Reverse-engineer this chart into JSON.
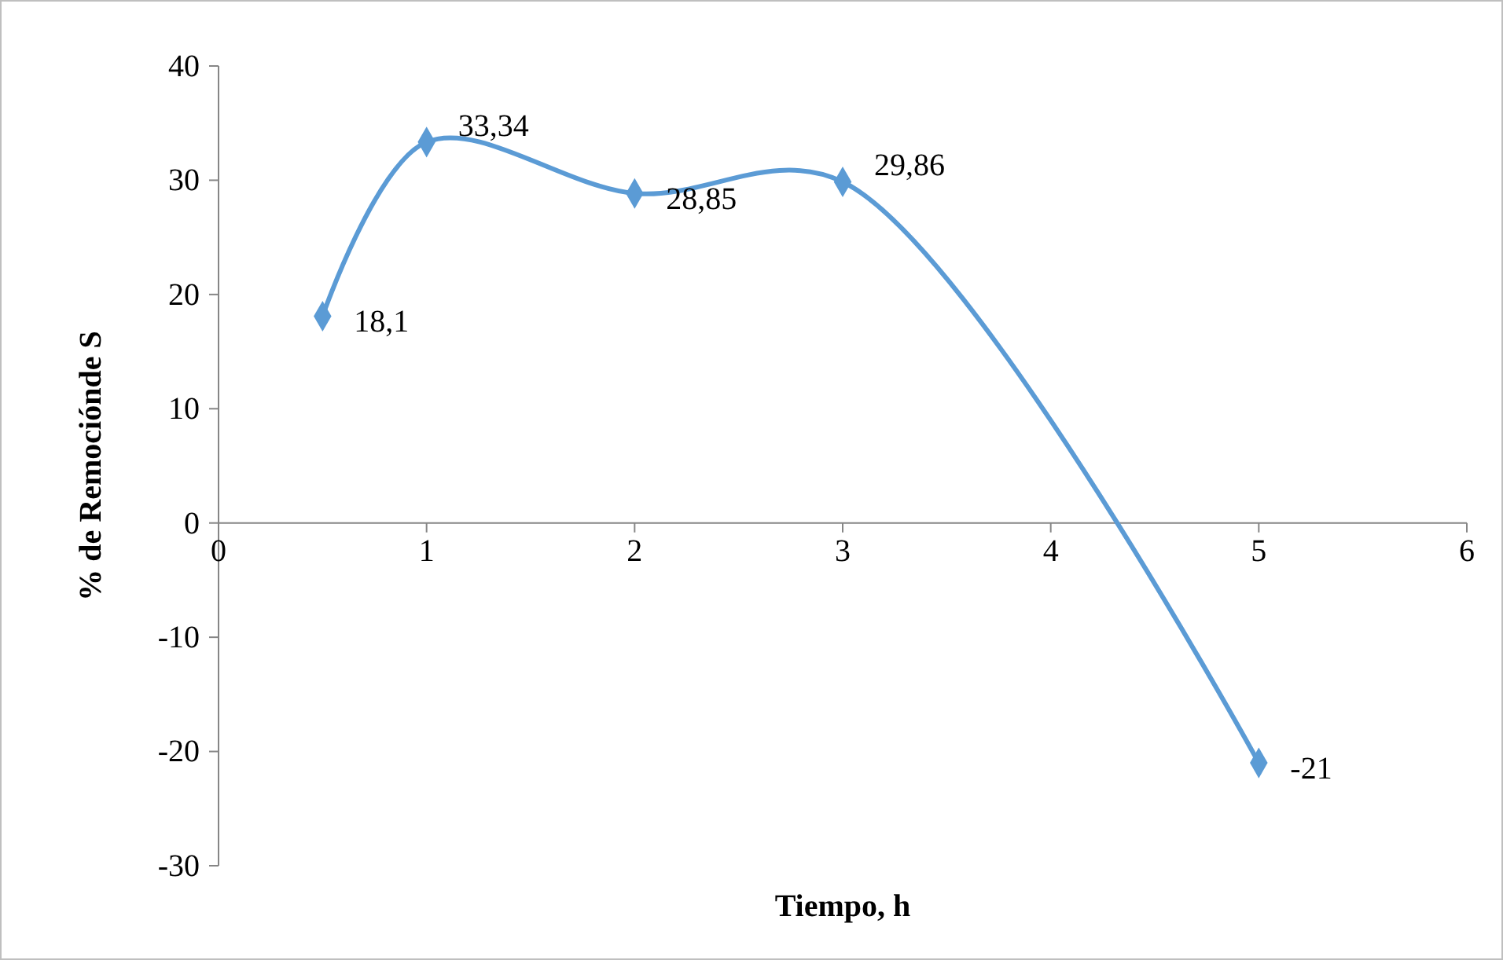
{
  "chart_data": {
    "type": "line",
    "xlabel": "Tiempo, h",
    "ylabel": "% de Remociónde S",
    "x": [
      0.5,
      1,
      2,
      3,
      5
    ],
    "series": [
      {
        "color": "#5b9bd5",
        "values": [
          18.1,
          33.34,
          28.85,
          29.86,
          -21
        ],
        "value_labels": [
          "18,1",
          "33,34",
          "28,85",
          "29,86",
          "-21"
        ]
      }
    ],
    "xlim": [
      0,
      6
    ],
    "xticks": [
      0,
      1,
      2,
      3,
      4,
      5,
      6
    ],
    "ylim": [
      -30,
      40
    ],
    "yticks": [
      -30,
      -20,
      -10,
      0,
      10,
      20,
      30,
      40
    ],
    "grid": false,
    "marker": "diamond",
    "line_style": "solid"
  }
}
